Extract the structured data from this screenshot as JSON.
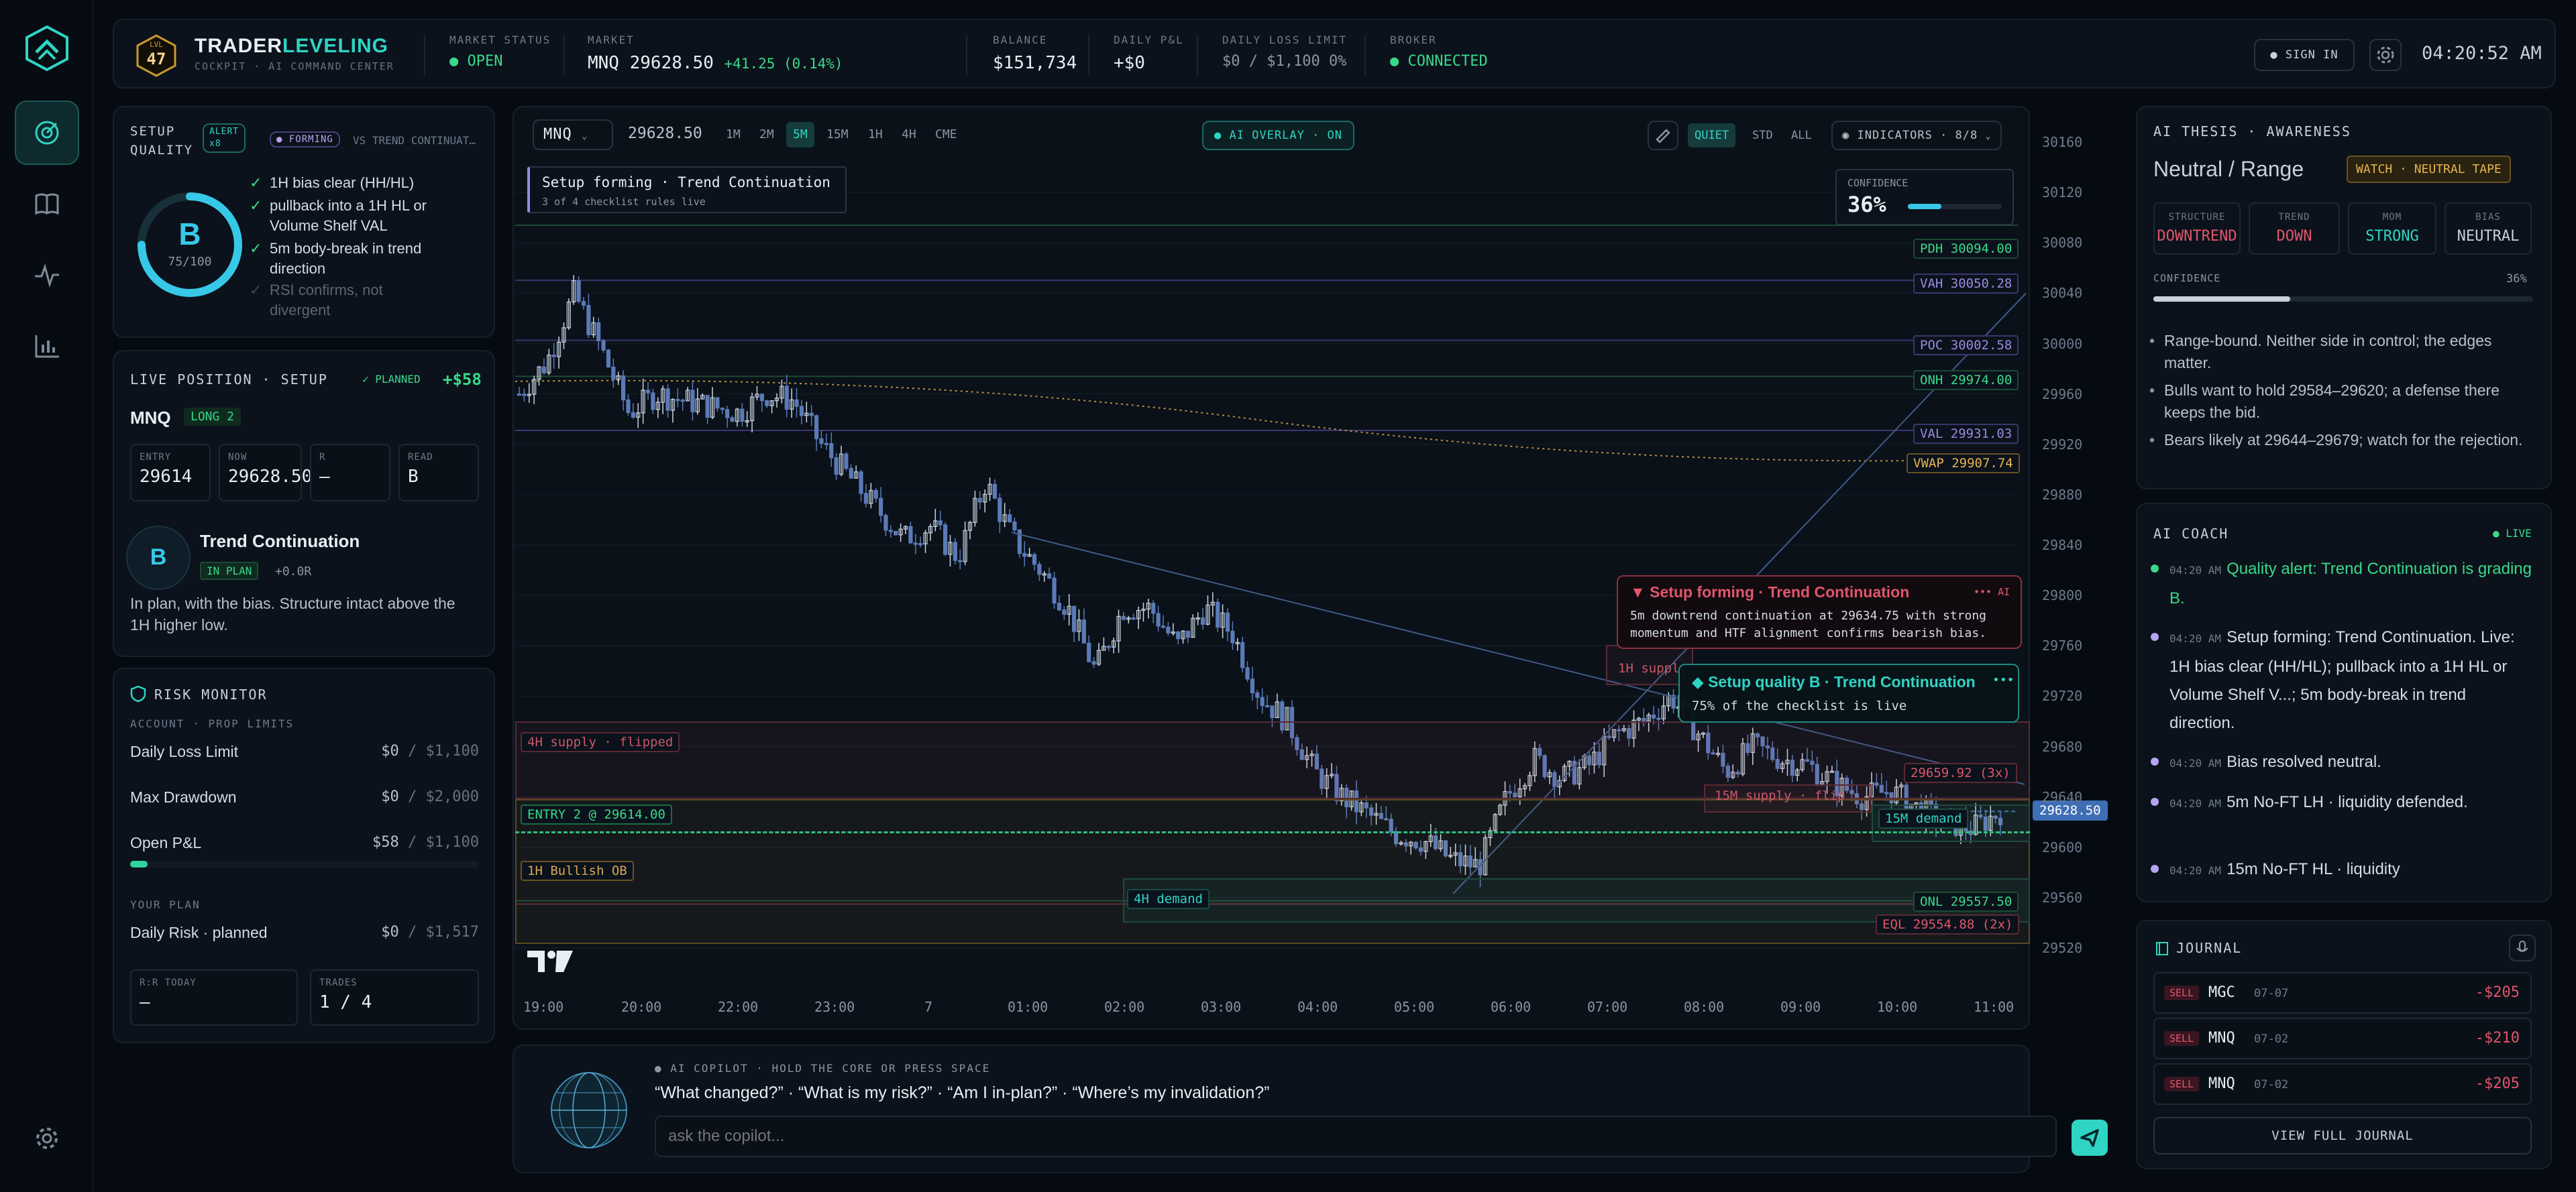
{
  "brand": {
    "level": "47",
    "lvl_label": "LVL",
    "name_a": "TRADER",
    "name_b": "LEVELING",
    "subtitle": "COCKPIT · AI COMMAND CENTER"
  },
  "header": {
    "market_status": {
      "label": "MARKET STATUS",
      "value": "OPEN"
    },
    "market": {
      "label": "MARKET",
      "symbol": "MNQ",
      "price": "29628.50",
      "change": "+41.25 (0.14%)"
    },
    "balance": {
      "label": "BALANCE",
      "value": "$151,734"
    },
    "daily_pnl": {
      "label": "DAILY P&L",
      "value": "+$0"
    },
    "daily_loss_limit": {
      "label": "DAILY LOSS LIMIT",
      "value": "$0 / $1,100 0%"
    },
    "broker": {
      "label": "BROKER",
      "value": "CONNECTED"
    },
    "sign_in": "SIGN IN",
    "clock": "04:20:52 AM"
  },
  "setup_quality": {
    "title": "SETUP QUALITY",
    "alert": "ALERT",
    "alert_count": "x8",
    "forming": "FORMING",
    "vs": "VS TREND CONTINUAT…",
    "grade": "B",
    "score": "75/100",
    "score_value": 75,
    "checklist": [
      {
        "text": "1H bias clear (HH/HL)",
        "done": true
      },
      {
        "text": "pullback into a 1H HL or Volume Shelf VAL",
        "done": true
      },
      {
        "text": "5m body-break in trend direction",
        "done": true
      },
      {
        "text": "RSI confirms, not divergent",
        "done": false
      }
    ]
  },
  "live_position": {
    "title": "LIVE POSITION · SETUP",
    "planned": "PLANNED",
    "pnl": "+$58",
    "symbol": "MNQ",
    "side": "LONG 2",
    "cells": [
      {
        "k": "ENTRY",
        "v": "29614"
      },
      {
        "k": "NOW",
        "v": "29628.50"
      },
      {
        "k": "R",
        "v": "—"
      },
      {
        "k": "READ",
        "v": "B"
      }
    ],
    "setup_grade": "B",
    "setup_name": "Trend Continuation",
    "in_plan": "IN PLAN",
    "r_value": "+0.0R",
    "note": "In plan, with the bias. Structure intact above the 1H higher low."
  },
  "risk_monitor": {
    "title": "RISK MONITOR",
    "section1": "ACCOUNT · PROP LIMITS",
    "rows": [
      {
        "label": "Daily Loss Limit",
        "value": "$0",
        "of": "/ $1,100"
      },
      {
        "label": "Max Drawdown",
        "value": "$0",
        "of": "/ $2,000"
      },
      {
        "label": "Open P&L",
        "value": "$58",
        "of": "/ $1,100"
      }
    ],
    "open_pnl_fraction": 0.05,
    "section2": "YOUR PLAN",
    "plan_row": {
      "label": "Daily Risk · planned",
      "value": "$0",
      "of": "/ $1,517"
    },
    "rr_today": {
      "k": "R:R TODAY",
      "v": "—"
    },
    "trades": {
      "k": "TRADES",
      "v": "1 / 4"
    }
  },
  "chart_toolbar": {
    "symbol": "MNQ",
    "price": "29628.50",
    "timeframes": [
      "1M",
      "2M",
      "5M",
      "15M",
      "1H",
      "4H",
      "CME"
    ],
    "active_tf": "5M",
    "ai_overlay": "AI OVERLAY · ON",
    "modes": [
      "QUIET",
      "STD",
      "ALL"
    ],
    "active_mode": "QUIET",
    "indicators": "INDICATORS · 8/8"
  },
  "chart_overlay": {
    "setup_title": "Setup forming · Trend Continuation",
    "setup_sub": "3 of 4 checklist rules live",
    "confidence_label": "CONFIDENCE",
    "confidence_value": "36%",
    "confidence_fraction": 0.36,
    "ai_card1_title": "Setup forming · Trend Continuation",
    "ai_card1_tag": "AI",
    "ai_card1_body": "5m downtrend continuation at 29634.75 with strong momentum and HTF alignment confirms bearish bias.",
    "ai_card2_title": "Setup quality B · Trend Continuation",
    "ai_card2_body": "75% of the checklist is live",
    "levels": {
      "pdh": "PDH 30094.00",
      "vah": "VAH 30050.28",
      "poc": "POC 30002.58",
      "onh": "ONH 29974.00",
      "val": "VAL 29931.03",
      "vwap": "VWAP 29907.74",
      "onl": "ONL 29557.50",
      "eql": "EQL 29554.88 (2x)",
      "last": "29628.50",
      "eq2": "29659.92 (3x)"
    },
    "zones": {
      "supply4h": "4H supply · flipped",
      "entry": "ENTRY 2 @ 29614.00",
      "bullish_ob": "1H Bullish OB",
      "demand4h": "4H demand",
      "supply15m": "15M supply · flip",
      "demand15m": "15M demand",
      "supply1h": "1H supply"
    }
  },
  "chart_data": {
    "type": "candlestick",
    "symbol": "MNQ",
    "interval": "5M",
    "y_ticks": [
      30160,
      30120,
      30080,
      30040,
      30000,
      29960,
      29920,
      29880,
      29840,
      29800,
      29760,
      29720,
      29680,
      29640,
      29600,
      29560,
      29520
    ],
    "y_range": [
      29500,
      30180
    ],
    "x_ticks": [
      "19:00",
      "20:00",
      "22:00",
      "23:00",
      "7",
      "01:00",
      "02:00",
      "03:00",
      "04:00",
      "05:00",
      "06:00",
      "07:00",
      "08:00",
      "09:00",
      "10:00",
      "11:00"
    ],
    "path_points": [
      29960,
      29985,
      30040,
      29995,
      29945,
      29960,
      29955,
      29950,
      29945,
      29960,
      29955,
      29920,
      29895,
      29870,
      29845,
      29855,
      29830,
      29890,
      29845,
      29820,
      29790,
      29740,
      29790,
      29790,
      29760,
      29790,
      29770,
      29720,
      29700,
      29660,
      29640,
      29625,
      29610,
      29605,
      29590,
      29585,
      29640,
      29670,
      29655,
      29665,
      29690,
      29700,
      29720,
      29690,
      29660,
      29680,
      29670,
      29665,
      29650,
      29640,
      29645,
      29630,
      29620,
      29615,
      29628.5
    ],
    "last_price": 29628.5,
    "levels": [
      {
        "name": "PDH",
        "value": 30094.0
      },
      {
        "name": "VAH",
        "value": 30050.28
      },
      {
        "name": "POC",
        "value": 30002.58
      },
      {
        "name": "ONH",
        "value": 29974.0
      },
      {
        "name": "VAL",
        "value": 29931.03
      },
      {
        "name": "VWAP",
        "value": 29907.74
      },
      {
        "name": "ONL",
        "value": 29557.5
      },
      {
        "name": "EQL",
        "value": 29554.88
      },
      {
        "name": "ENTRY",
        "value": 29614.0
      }
    ]
  },
  "copilot": {
    "label": "AI COPILOT · HOLD THE CORE OR PRESS SPACE",
    "suggestions": "“What changed?” · “What is my risk?” · “Am I in-plan?” · “Where’s my invalidation?”",
    "placeholder": "ask the copilot..."
  },
  "thesis": {
    "title": "AI THESIS · AWARENESS",
    "state": "Neutral / Range",
    "badge": "WATCH · NEUTRAL TAPE",
    "cells": [
      {
        "k": "STRUCTURE",
        "v": "DOWNTREND",
        "color": "#e0566c"
      },
      {
        "k": "TREND",
        "v": "DOWN",
        "color": "#e0566c"
      },
      {
        "k": "MOM",
        "v": "STRONG",
        "color": "#2fd4c4"
      },
      {
        "k": "BIAS",
        "v": "NEUTRAL",
        "color": "#c8d0d8"
      }
    ],
    "confidence_label": "CONFIDENCE",
    "confidence_value": "36%",
    "confidence_fraction": 0.36,
    "bullets": [
      "Range-bound. Neither side in control; the edges matter.",
      "Bulls want to hold 29584–29620; a defense there keeps the bid.",
      "Bears likely at 29644–29679; watch for the rejection."
    ]
  },
  "coach": {
    "title": "AI COACH",
    "live": "LIVE",
    "items": [
      {
        "time": "04:20 AM",
        "text": "Quality alert: Trend Continuation is grading B.",
        "color": "#39d98a"
      },
      {
        "time": "04:20 AM",
        "text": "Setup forming: Trend Continuation. Live: 1H bias clear (HH/HL); pullback into a 1H HL or Volume Shelf V...; 5m body-break in trend direction.",
        "color": "#d4dce6"
      },
      {
        "time": "04:20 AM",
        "text": "Bias resolved neutral.",
        "color": "#d4dce6"
      },
      {
        "time": "04:20 AM",
        "text": "5m No-FT LH · liquidity defended.",
        "color": "#d4dce6"
      },
      {
        "time": "04:20 AM",
        "text": "15m No-FT HL · liquidity",
        "color": "#d4dce6"
      }
    ]
  },
  "journal": {
    "title": "JOURNAL",
    "rows": [
      {
        "side": "SELL",
        "symbol": "MGC",
        "date": "07-07",
        "pnl": "-$205"
      },
      {
        "side": "SELL",
        "symbol": "MNQ",
        "date": "07-02",
        "pnl": "-$210"
      },
      {
        "side": "SELL",
        "symbol": "MNQ",
        "date": "07-02",
        "pnl": "-$205"
      }
    ],
    "view_all": "VIEW FULL JOURNAL"
  },
  "colors": {
    "accent": "#2fd4c4",
    "bear": "#e0566c",
    "bull": "#39d98a",
    "gold": "#e6b450",
    "candle": "#c8d4e0",
    "candle_down": "#5a7ab8"
  }
}
